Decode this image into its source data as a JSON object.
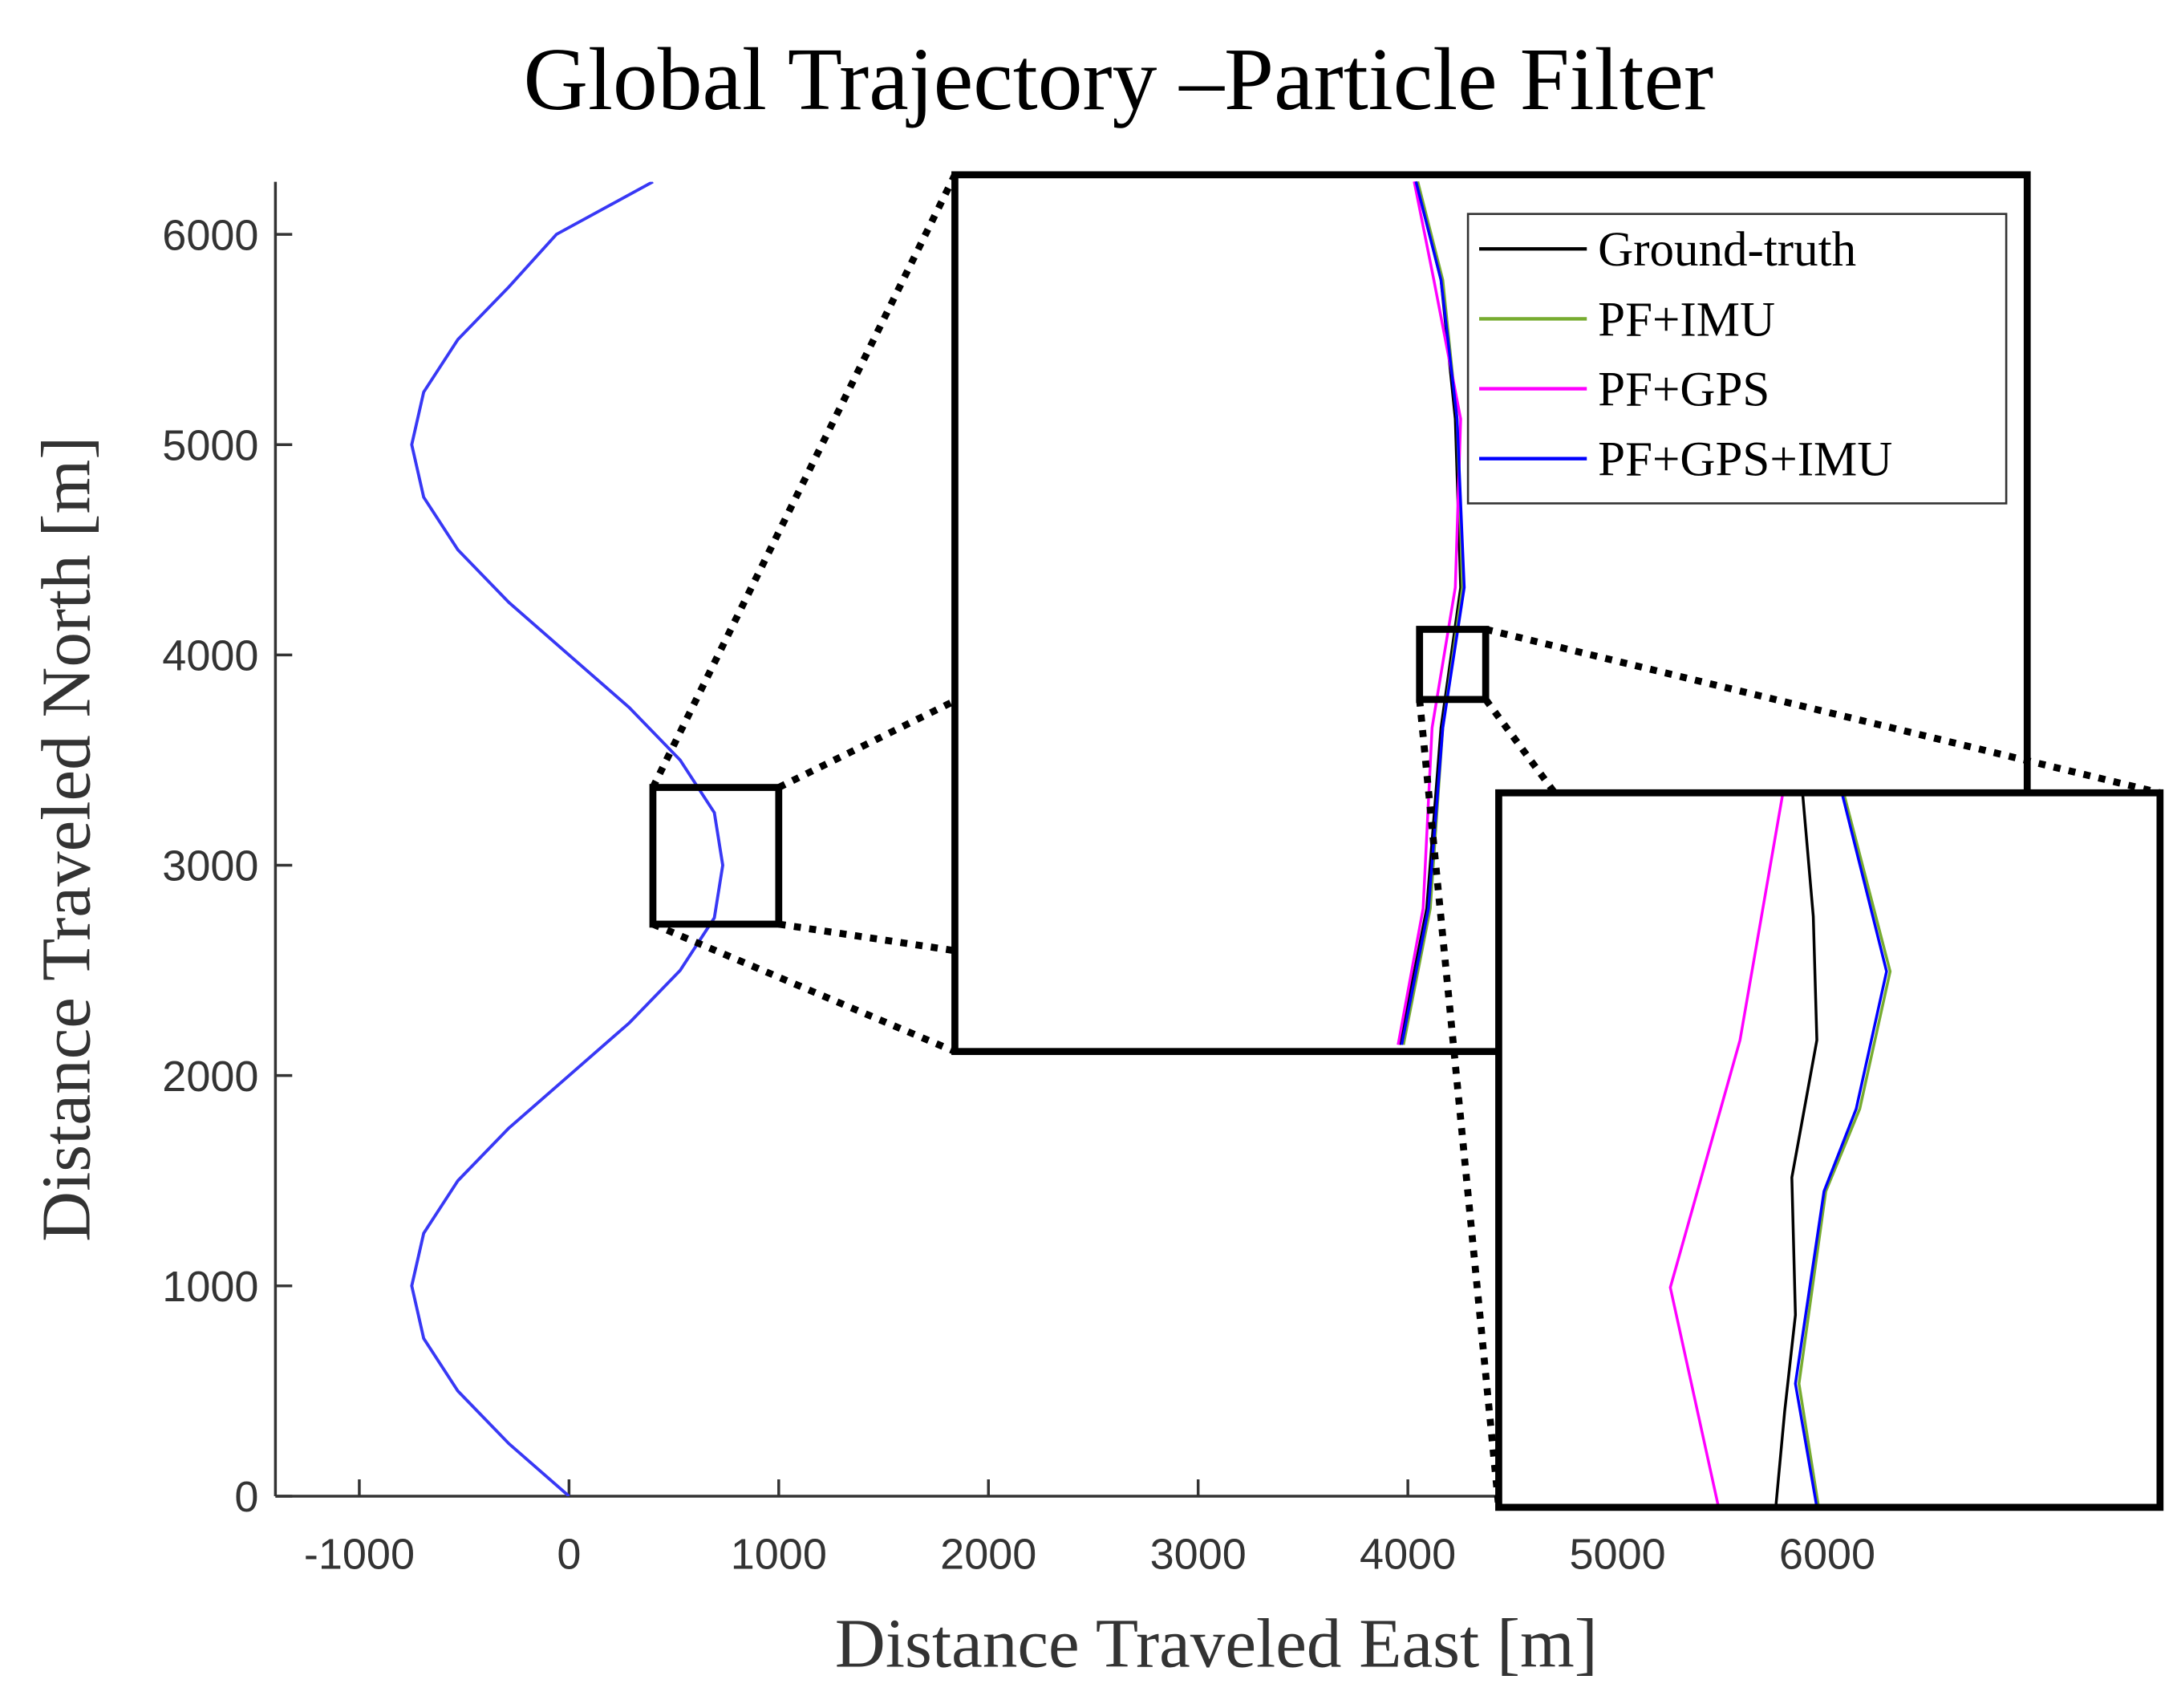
{
  "chart_data": [
    {
      "type": "line",
      "title": "Global Trajectory –Particle Filter",
      "xlabel": "Distance Traveled East [m]",
      "ylabel": "Distance Traveled North [m]",
      "xlim": [
        -1400,
        7600
      ],
      "ylim": [
        0,
        6250
      ],
      "xticks": [
        -1000,
        0,
        1000,
        2000,
        3000,
        4000,
        5000,
        6000
      ],
      "yticks": [
        0,
        1000,
        2000,
        3000,
        4000,
        5000,
        6000
      ],
      "series": [
        {
          "color": "#3838f5",
          "x": [
            0,
            -287,
            -530,
            -693,
            -750,
            -693,
            -530,
            -287,
            0,
            287,
            530,
            693,
            733,
            693,
            530,
            287,
            0,
            -287,
            -530,
            -693,
            -750,
            -693,
            -530,
            -287,
            -60,
            400
          ],
          "y": [
            0,
            250,
            500,
            750,
            1000,
            1250,
            1500,
            1750,
            2000,
            2250,
            2500,
            2750,
            3000,
            3250,
            3500,
            3750,
            4000,
            4250,
            4500,
            4750,
            5000,
            5250,
            5500,
            5750,
            6000,
            6250
          ]
        }
      ]
    },
    {
      "type": "line",
      "xlim": [
        400,
        1000
      ],
      "ylim": [
        2720,
        3370
      ],
      "legend": "upper right",
      "series": [
        {
          "name": "Ground-truth",
          "color": "#000000",
          "x": [
            649,
            664,
            672,
            683,
            680,
            672,
            658
          ],
          "y": [
            2725,
            2826,
            2960,
            3064,
            3189,
            3292,
            3365
          ]
        },
        {
          "name": "PF+IMU",
          "color": "#77ac30",
          "x": [
            651,
            666,
            673,
            684,
            681,
            673,
            659
          ],
          "y": [
            2725,
            2826,
            2960,
            3064,
            3189,
            3292,
            3365
          ]
        },
        {
          "name": "PF+GPS",
          "color": "#ff00ff",
          "x": [
            648,
            662,
            667,
            680,
            683,
            668,
            657
          ],
          "y": [
            2725,
            2826,
            2960,
            3064,
            3189,
            3292,
            3365
          ]
        },
        {
          "name": "PF+GPS+IMU",
          "color": "#0000ff",
          "x": [
            650,
            665,
            673,
            685,
            681,
            672,
            658
          ],
          "y": [
            2725,
            2826,
            2960,
            3064,
            3189,
            3292,
            3365
          ]
        }
      ]
    },
    {
      "type": "line",
      "xlim": [
        660,
        697
      ],
      "ylim": [
        2981,
        3033
      ],
      "series": [
        {
          "color": "#000000",
          "x": [
            677.0,
            677.6,
            677.8,
            676.4,
            676.6,
            676.0,
            675.5
          ],
          "y": [
            3033,
            3024,
            3015,
            3005,
            2995,
            2988,
            2981
          ]
        },
        {
          "color": "#77ac30",
          "x": [
            679.3,
            681.9,
            680.2,
            678.3,
            676.8,
            677.9
          ],
          "y": [
            3033,
            3020,
            3010,
            3004,
            2990,
            2981
          ]
        },
        {
          "color": "#ff00ff",
          "x": [
            675.9,
            673.5,
            669.6,
            672.3
          ],
          "y": [
            3033,
            3015,
            2997,
            2981
          ]
        },
        {
          "color": "#0000ff",
          "x": [
            679.2,
            681.7,
            680.0,
            678.2,
            676.6,
            677.8
          ],
          "y": [
            3033,
            3020,
            3010,
            3004,
            2990,
            2981
          ]
        }
      ]
    }
  ]
}
